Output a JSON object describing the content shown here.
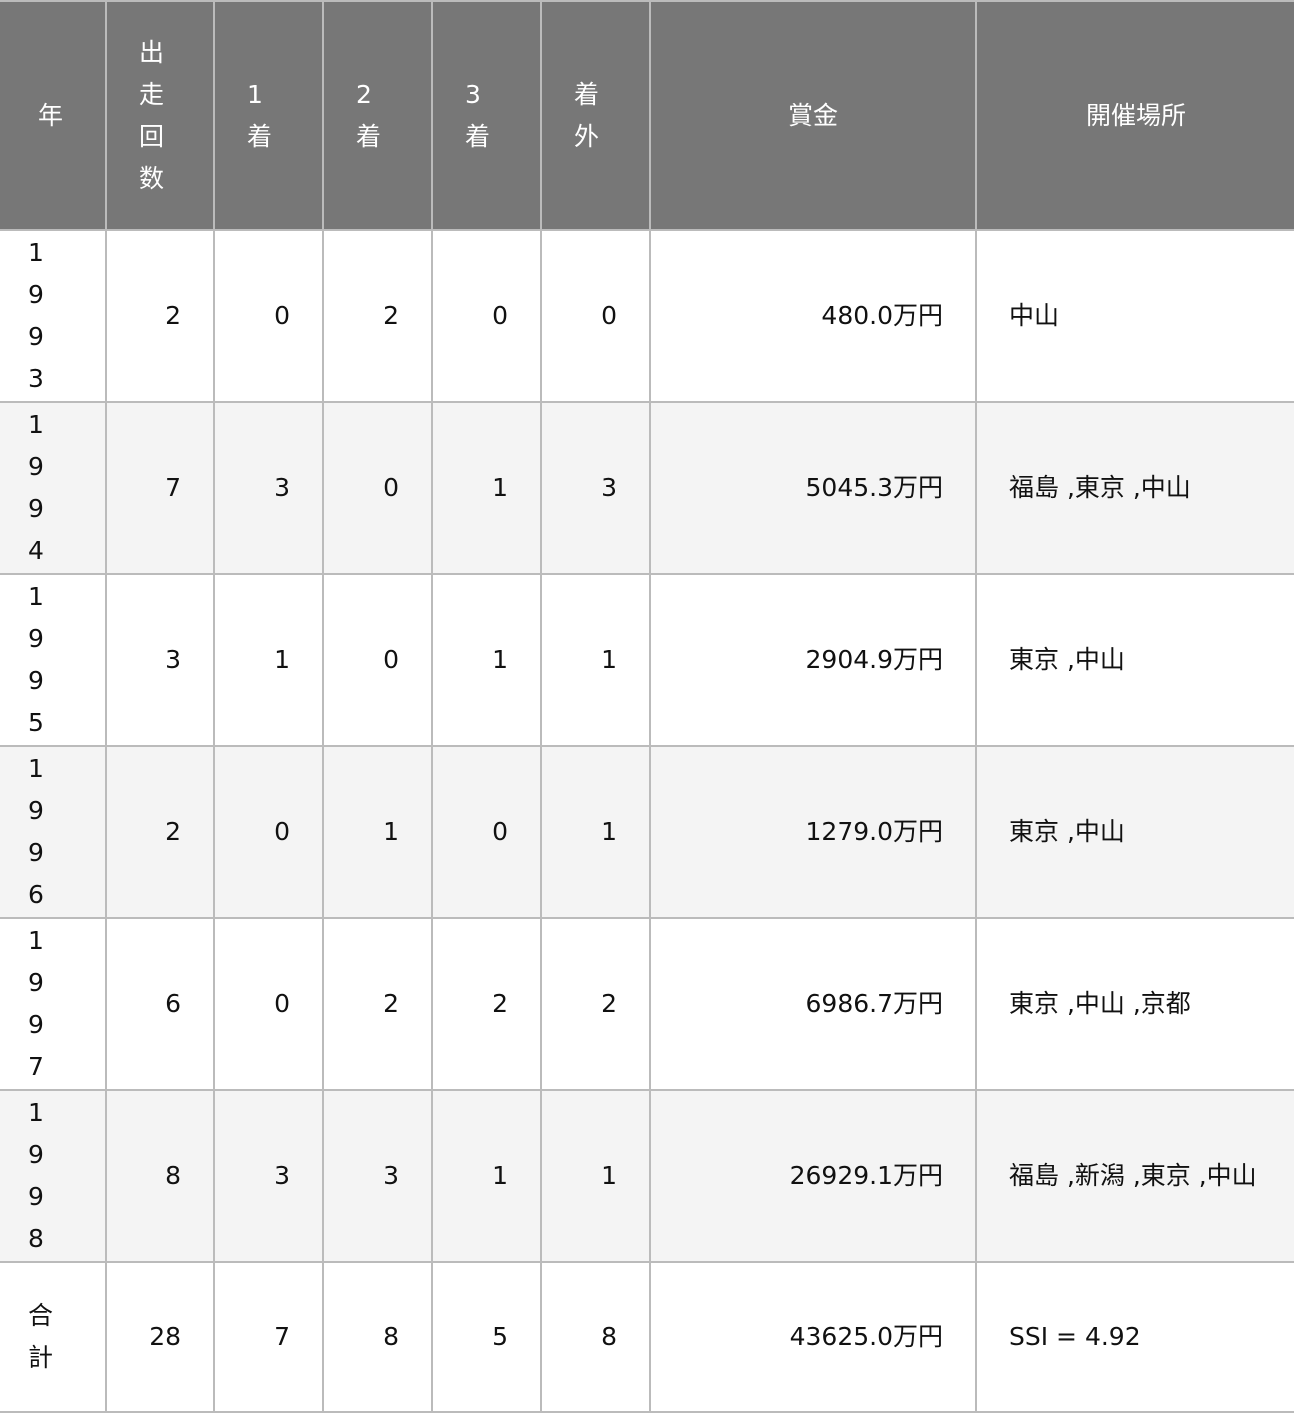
{
  "headers": {
    "year": "年",
    "starts": "出走回数",
    "first": "1着",
    "second": "2着",
    "third": "3着",
    "unplaced": "着外",
    "prize": "賞金",
    "venues": "開催場所"
  },
  "rows": [
    {
      "year": "1993",
      "starts": "2",
      "first": "0",
      "second": "2",
      "third": "0",
      "unplaced": "0",
      "prize": "480.0万円",
      "venues": "中山"
    },
    {
      "year": "1994",
      "starts": "7",
      "first": "3",
      "second": "0",
      "third": "1",
      "unplaced": "3",
      "prize": "5045.3万円",
      "venues": "福島 ,東京 ,中山"
    },
    {
      "year": "1995",
      "starts": "3",
      "first": "1",
      "second": "0",
      "third": "1",
      "unplaced": "1",
      "prize": "2904.9万円",
      "venues": "東京 ,中山"
    },
    {
      "year": "1996",
      "starts": "2",
      "first": "0",
      "second": "1",
      "third": "0",
      "unplaced": "1",
      "prize": "1279.0万円",
      "venues": "東京 ,中山"
    },
    {
      "year": "1997",
      "starts": "6",
      "first": "0",
      "second": "2",
      "third": "2",
      "unplaced": "2",
      "prize": "6986.7万円",
      "venues": "東京 ,中山 ,京都"
    },
    {
      "year": "1998",
      "starts": "8",
      "first": "3",
      "second": "3",
      "third": "1",
      "unplaced": "1",
      "prize": "26929.1万円",
      "venues": "福島 ,新潟 ,東京 ,中山"
    }
  ],
  "total": {
    "label": "合計",
    "starts": "28",
    "first": "7",
    "second": "8",
    "third": "5",
    "unplaced": "8",
    "prize": "43625.0万円",
    "ssi": "SSI = 4.92"
  },
  "colors": {
    "header_bg": "#777777",
    "header_text": "#ffffff",
    "row_alt": "#f4f4f4",
    "border": "#bbbbbb"
  }
}
